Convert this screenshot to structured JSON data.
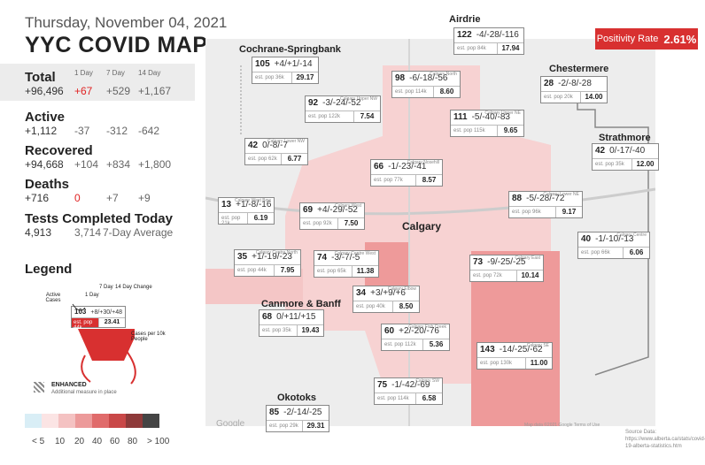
{
  "date": "Thursday, November 04, 2021",
  "title": "YYC COVID MAP",
  "stats": {
    "total": {
      "label": "Total",
      "value": "+96,496",
      "day": "+67",
      "week": "+529",
      "fourteen": "+1,167"
    },
    "cols": {
      "day": "1 Day",
      "week": "7 Day",
      "fourteen": "14 Day"
    },
    "active": {
      "label": "Active",
      "value": "+1,112",
      "day": "-37",
      "week": "-312",
      "fourteen": "-642"
    },
    "recovered": {
      "label": "Recovered",
      "value": "+94,668",
      "day": "+104",
      "week": "+834",
      "fourteen": "+1,800"
    },
    "deaths": {
      "label": "Deaths",
      "value": "+716",
      "day": "0",
      "week": "+7",
      "fourteen": "+9"
    },
    "tests": {
      "label": "Tests Completed Today",
      "value": "4,913",
      "avg": "3,714",
      "avg_label": "7-Day Average"
    }
  },
  "legend": {
    "title": "Legend",
    "active_cases": "Active Cases",
    "one_day": "1 Day",
    "seven_day": "7 Day",
    "change": "14 Day Change",
    "example_active": "103",
    "example_change": "+8/+30/+48",
    "example_pop": "est. pop 44k",
    "example_rate": "23.41",
    "cases_per": "Cases per 10k People",
    "enhanced": "ENHANCED",
    "enhanced_desc": "Additional measure in place",
    "scale_labels": [
      "< 5",
      "10",
      "20",
      "40",
      "60",
      "80",
      "> 100"
    ],
    "scale_colors": [
      "#d9eef6",
      "#fbe4e4",
      "#f4c2c2",
      "#ec9a9a",
      "#e06b6b",
      "#c94848",
      "#8e3a3a",
      "#444444"
    ]
  },
  "positivity": {
    "label": "Positivity Rate",
    "value": "2.61%"
  },
  "towns": {
    "airdrie": "Airdrie",
    "cochrane": "Cochrane-Springbank",
    "chestermere": "Chestermere",
    "strathmore": "Strathmore",
    "canmore": "Canmore & Banff",
    "okotoks": "Okotoks",
    "calgary": "Calgary"
  },
  "boxes": [
    {
      "id": "airdrie",
      "active": "122",
      "change": "-4/-28/-116",
      "name": "",
      "pop": "est. pop 84k",
      "rate": "17.94"
    },
    {
      "id": "cochrane",
      "active": "105",
      "change": "+4/+1/-14",
      "name": "",
      "pop": "est. pop 36k",
      "rate": "29.17"
    },
    {
      "id": "north",
      "active": "98",
      "change": "-6/-18/-56",
      "name": "Calgary North",
      "pop": "est. pop 114k",
      "rate": "8.60"
    },
    {
      "id": "chestermere",
      "active": "28",
      "change": "-2/-8/-28",
      "name": "",
      "pop": "est. pop 20k",
      "rate": "14.00"
    },
    {
      "id": "uppernw",
      "active": "92",
      "change": "-3/-24/-52",
      "name": "Calgary Upper NW",
      "pop": "est. pop 122k",
      "rate": "7.54"
    },
    {
      "id": "upperne",
      "active": "111",
      "change": "-5/-40/-83",
      "name": "Calgary Upper NE",
      "pop": "est. pop 115k",
      "rate": "9.65"
    },
    {
      "id": "lowernw",
      "active": "42",
      "change": "0/-8/-7",
      "name": "Calgary Lower NW",
      "pop": "est. pop 62k",
      "rate": "6.77"
    },
    {
      "id": "nosehill",
      "active": "66",
      "change": "-1/-23/-41",
      "name": "Calgary Nosehill",
      "pop": "est. pop 77k",
      "rate": "8.57"
    },
    {
      "id": "strathmore",
      "active": "42",
      "change": "0/-17/-40",
      "name": "",
      "pop": "est. pop 35k",
      "rate": "12.00"
    },
    {
      "id": "westbow",
      "active": "13",
      "change": "+1/-8/-16",
      "name": "Calgary West Bow",
      "pop": "est. pop 21k",
      "rate": "6.19"
    },
    {
      "id": "west",
      "active": "69",
      "change": "+4/-29/-52",
      "name": "Calgary West",
      "pop": "est. pop 92k",
      "rate": "7.50"
    },
    {
      "id": "lowerne",
      "active": "88",
      "change": "-5/-28/-72",
      "name": "Calgary Lower NE",
      "pop": "est. pop 96k",
      "rate": "9.17"
    },
    {
      "id": "centre",
      "active": "40",
      "change": "-1/-10/-13",
      "name": "Calgary Centre",
      "pop": "est. pop 66k",
      "rate": "6.06"
    },
    {
      "id": "centrenorth",
      "active": "35",
      "change": "+1/-19/-23",
      "name": "Calgary Centre North",
      "pop": "est. pop 44k",
      "rate": "7.95"
    },
    {
      "id": "centrewest",
      "active": "74",
      "change": "-3/-7/-5",
      "name": "Calgary Centre West",
      "pop": "est. pop 65k",
      "rate": "11.38"
    },
    {
      "id": "east",
      "active": "73",
      "change": "-9/-25/-25",
      "name": "Calgary East",
      "pop": "est. pop 72k",
      "rate": "10.14"
    },
    {
      "id": "elbow",
      "active": "34",
      "change": "+3/+9/+6",
      "name": "Calgary Elbow",
      "pop": "est. pop 40k",
      "rate": "8.50"
    },
    {
      "id": "canmore",
      "active": "68",
      "change": "0/+11/+15",
      "name": "",
      "pop": "est. pop 35k",
      "rate": "19.43"
    },
    {
      "id": "fishcreek",
      "active": "60",
      "change": "+2/-20/-76",
      "name": "Calgary Fish Creek",
      "pop": "est. pop 112k",
      "rate": "5.36"
    },
    {
      "id": "se",
      "active": "143",
      "change": "-14/-25/-62",
      "name": "Calgary SE",
      "pop": "est. pop 130k",
      "rate": "11.00"
    },
    {
      "id": "sw",
      "active": "75",
      "change": "-1/-42/-69",
      "name": "Calgary SW",
      "pop": "est. pop 114k",
      "rate": "6.58"
    },
    {
      "id": "okotoks",
      "active": "85",
      "change": "-2/-14/-25",
      "name": "",
      "pop": "est. pop 29k",
      "rate": "29.31"
    }
  ],
  "source": "Source Data: https://www.alberta.ca/stats/covid-19-alberta-statistics.htm",
  "attribution": "Map data ©2021 Google  Terms of Use",
  "google": "Google"
}
